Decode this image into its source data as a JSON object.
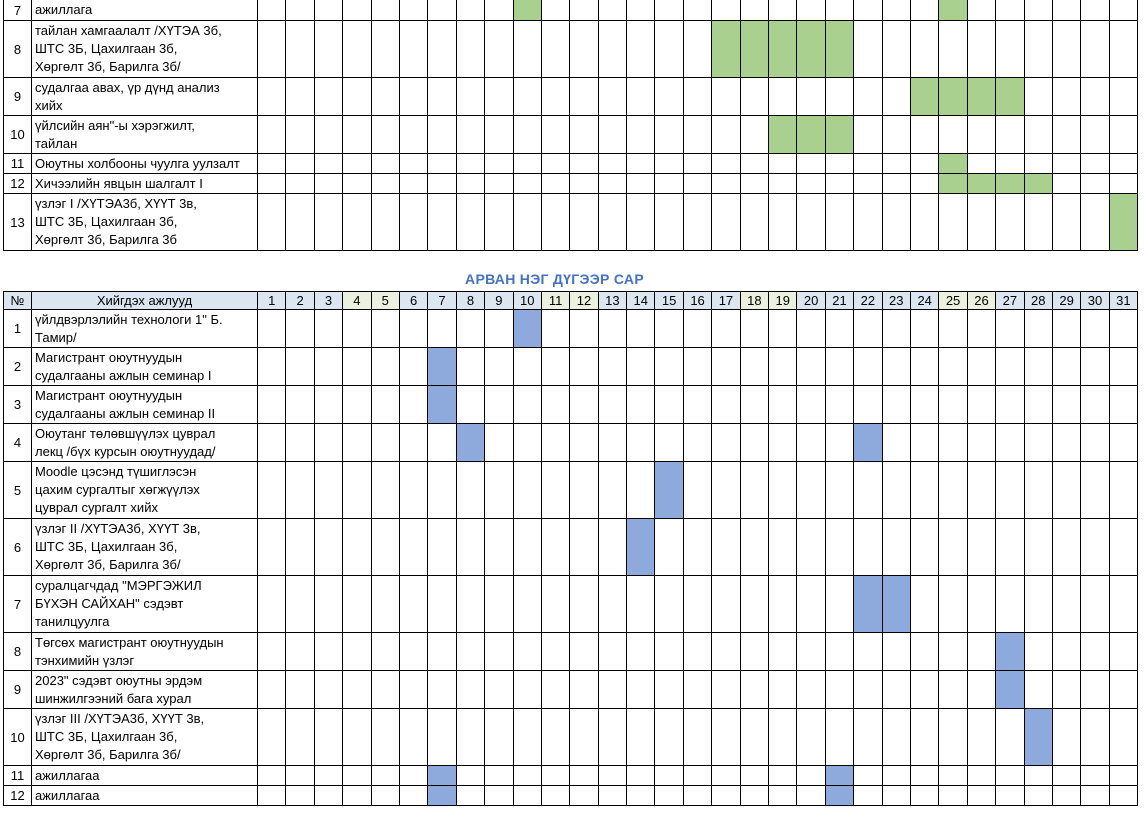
{
  "colors": {
    "green_bar": "#a9d08e",
    "blue_bar": "#8ea9db",
    "header_bg": "#dce6f1",
    "weekend_bg": "#ebf1de",
    "title": "#4472c4"
  },
  "top_table": {
    "rows": [
      {
        "no": "7",
        "lines": [
          "ажиллага"
        ],
        "days": [
          10,
          25
        ],
        "h": 21
      },
      {
        "no": "8",
        "lines": [
          "тайлан хамгаалалт /ХҮТЭА 3б,",
          "ШТС 3Б, Цахилгаан 3б,",
          "Хөргөлт 3б, Барилга 3б/"
        ],
        "days": [
          17,
          18,
          19,
          20,
          21
        ],
        "h": 57
      },
      {
        "no": "9",
        "lines": [
          "судалгаа авах, үр дүнд анализ",
          "хийх"
        ],
        "days": [
          24,
          25,
          26,
          27
        ],
        "h": 38
      },
      {
        "no": "10",
        "lines": [
          "үйлсийн аян\"-ы хэрэгжилт,",
          "тайлан"
        ],
        "days": [
          19,
          20,
          21
        ],
        "h": 38
      },
      {
        "no": "11",
        "lines": [
          "Оюутны холбооны чуулга уулзалт"
        ],
        "days": [
          25
        ],
        "h": 20
      },
      {
        "no": "12",
        "lines": [
          "Хичээлийн явцын шалгалт I"
        ],
        "days": [
          25,
          26,
          27,
          28
        ],
        "h": 20
      },
      {
        "no": "13",
        "lines": [
          "үзлэг I /ХҮТЭА3б, ХҮҮТ 3в,",
          "ШТС 3Б, Цахилгаан 3б,",
          "Хөргөлт 3б, Барилга 3б"
        ],
        "days": [
          31
        ],
        "h": 57
      }
    ]
  },
  "month_title": "АРВАН НЭГ ДҮГЭЭР САР",
  "bottom_table": {
    "header": {
      "no": "№",
      "task": "Хийгдэх ажлууд"
    },
    "day_labels": [
      "1",
      "2",
      "3",
      "4",
      "5",
      "6",
      "7",
      "8",
      "9",
      "10",
      "11",
      "12",
      "13",
      "14",
      "15",
      "16",
      "17",
      "18",
      "19",
      "20",
      "21",
      "22",
      "23",
      "24",
      "25",
      "26",
      "27",
      "28",
      "29",
      "30",
      "31"
    ],
    "weekend_days": [
      4,
      5,
      11,
      12,
      18,
      19,
      25,
      26
    ],
    "rows": [
      {
        "no": "1",
        "lines": [
          "үйлдвэрлэлийн технологи 1\" Б.",
          "Тамир/"
        ],
        "days": [
          10
        ],
        "h": 38
      },
      {
        "no": "2",
        "lines": [
          "Магистрант оюутнуудын",
          "судалгааны ажлын семинар I"
        ],
        "days": [
          7
        ],
        "h": 38
      },
      {
        "no": "3",
        "lines": [
          "Магистрант оюутнуудын",
          "судалгааны ажлын семинар II"
        ],
        "days": [
          7
        ],
        "h": 38
      },
      {
        "no": "4",
        "lines": [
          "Оюутанг төлөвшүүлэх цуврал",
          "лекц /бүх курсын оюутнуудад/"
        ],
        "days": [
          8,
          22
        ],
        "h": 38
      },
      {
        "no": "5",
        "lines": [
          "Moodle цэсэнд түшиглэсэн",
          "цахим сургалтыг хөгжүүлэх",
          "цуврал сургалт хийх"
        ],
        "days": [
          15
        ],
        "h": 57
      },
      {
        "no": "6",
        "lines": [
          "үзлэг II /ХҮТЭА3б, ХҮҮТ 3в,",
          "ШТС 3Б, Цахилгаан 3б,",
          "Хөргөлт 3б, Барилга 3б/"
        ],
        "days": [
          14
        ],
        "h": 57
      },
      {
        "no": "7",
        "lines": [
          "суралцагчдад \"МЭРГЭЖИЛ",
          "БҮХЭН САЙХАН\" сэдэвт",
          "танилцуулга"
        ],
        "days": [
          22,
          23
        ],
        "h": 57
      },
      {
        "no": "8",
        "lines": [
          "Төгсөх магистрант оюутнуудын",
          "тэнхимийн үзлэг"
        ],
        "days": [
          27
        ],
        "h": 38
      },
      {
        "no": "9",
        "lines": [
          "2023\" сэдэвт оюутны эрдэм",
          "шинжилгээний бага хурал"
        ],
        "days": [
          27
        ],
        "h": 38
      },
      {
        "no": "10",
        "lines": [
          "үзлэг III /ХҮТЭА3б, ХҮҮТ 3в,",
          "ШТС 3Б, Цахилгаан 3б,",
          "Хөргөлт 3б, Барилга 3б/"
        ],
        "days": [
          28
        ],
        "h": 57
      },
      {
        "no": "11",
        "lines": [
          "ажиллагаа"
        ],
        "days": [
          7,
          21
        ],
        "h": 20
      },
      {
        "no": "12",
        "lines": [
          "ажиллагаа"
        ],
        "days": [
          7,
          21
        ],
        "h": 20
      }
    ]
  }
}
